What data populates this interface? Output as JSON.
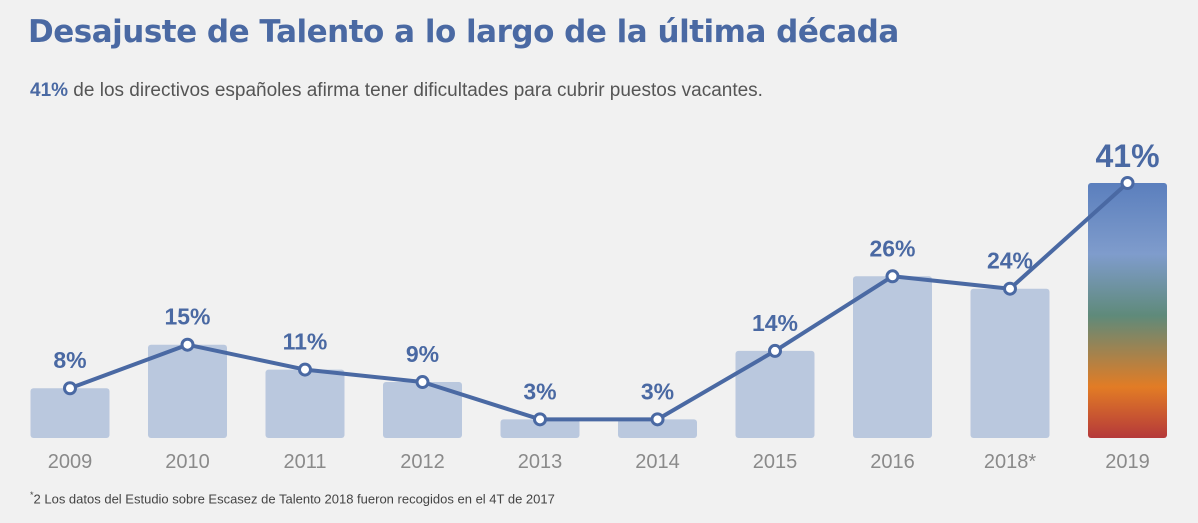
{
  "chart_data": {
    "type": "bar",
    "title": "Desajuste de Talento a lo largo de la última década",
    "subtitle_highlight": "41%",
    "subtitle_rest": " de los directivos españoles afirma tener dificultades para cubrir puestos vacantes.",
    "categories": [
      "2009",
      "2010",
      "2011",
      "2012",
      "2013",
      "2014",
      "2015",
      "2016",
      "2018*",
      "2019"
    ],
    "values": [
      8,
      15,
      11,
      9,
      3,
      3,
      14,
      26,
      24,
      41
    ],
    "labels": [
      "8%",
      "15%",
      "11%",
      "9%",
      "3%",
      "3%",
      "14%",
      "26%",
      "24%",
      "41%"
    ],
    "overlay": "line",
    "ylim": [
      0,
      41
    ],
    "xlabel": "",
    "ylabel": "",
    "footnote_marker": "*",
    "footnote": "2 Los datos del Estudio sobre Escasez de Talento 2018 fueron recogidos en el 4T de 2017"
  },
  "colors": {
    "accent": "#4a69a3",
    "bar": "#bac8de",
    "tick": "#8a8a8a",
    "highlight_gradient": [
      "#5b7fbd",
      "#7f9ccc",
      "#5f8a7a",
      "#e27c25",
      "#b5393a"
    ]
  }
}
